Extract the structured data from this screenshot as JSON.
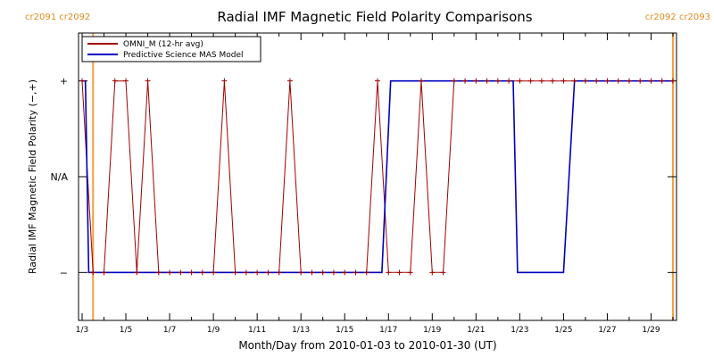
{
  "chart_data": {
    "type": "line",
    "title": "Radial IMF Magnetic Field Polarity Comparisons",
    "xlabel": "Month/Day from 2010-01-03 to 2010-01-30 (UT)",
    "ylabel": "Radial IMF Magnetic Field Polarity (−,+)",
    "x_unit": "days from 2010-01-03 00:00 UT",
    "xlim": [
      0,
      27
    ],
    "ylim": [
      -1.5,
      1.5
    ],
    "y_tick_values": [
      1,
      0,
      -1
    ],
    "y_tick_labels": [
      "+",
      "N/A",
      "−"
    ],
    "x_tick_values": [
      0,
      2,
      4,
      6,
      8,
      10,
      12,
      14,
      16,
      18,
      20,
      22,
      24,
      26
    ],
    "x_tick_labels": [
      "1/3",
      "1/5",
      "1/7",
      "1/9",
      "1/11",
      "1/13",
      "1/15",
      "1/17",
      "1/19",
      "1/21",
      "1/23",
      "1/25",
      "1/27",
      "1/29"
    ],
    "grid": false,
    "legend_position": "top-left",
    "carrington_markers": [
      {
        "x": 0.5,
        "label": "cr2091 cr2092",
        "side": "left"
      },
      {
        "x": 27.0,
        "label": "cr2092 cr2093",
        "side": "right"
      }
    ],
    "series": [
      {
        "name": "OMNI_M (12-hr avg)",
        "color": "#a00000",
        "x": [
          0.0,
          0.5,
          1.0,
          1.5,
          2.0,
          2.5,
          3.0,
          3.5,
          4.0,
          4.5,
          5.0,
          5.5,
          6.0,
          6.5,
          7.0,
          7.5,
          8.0,
          8.5,
          9.0,
          9.5,
          10.0,
          10.5,
          11.0,
          11.5,
          12.0,
          12.5,
          13.0,
          13.5,
          14.0,
          14.5,
          15.0,
          15.5,
          16.0,
          16.5,
          17.0,
          17.5,
          18.0,
          18.5,
          19.0,
          19.5,
          20.0,
          20.5,
          21.0,
          21.5,
          22.0,
          22.5,
          23.0,
          23.5,
          24.0,
          24.5,
          25.0,
          25.5,
          26.0,
          26.5,
          27.0
        ],
        "values": [
          1,
          -1,
          -1,
          1,
          1,
          -1,
          1,
          -1,
          -1,
          -1,
          -1,
          -1,
          -1,
          1,
          -1,
          -1,
          -1,
          -1,
          -1,
          1,
          -1,
          -1,
          -1,
          -1,
          -1,
          -1,
          -1,
          1,
          -1,
          -1,
          -1,
          1,
          -1,
          -1,
          1,
          1,
          1,
          1,
          1,
          1,
          1,
          1,
          1,
          1,
          1,
          1,
          1,
          1,
          1,
          1,
          1,
          1,
          1,
          1,
          1
        ]
      },
      {
        "name": "Predictive Science MAS Model",
        "color": "#0000c0",
        "x": [
          0.0,
          0.15,
          0.3,
          13.7,
          14.1,
          14.3,
          19.7,
          19.9,
          22.0,
          22.5,
          23.9,
          24.1,
          27.0
        ],
        "values": [
          1,
          1,
          -1,
          -1,
          1,
          1,
          1,
          -1,
          -1,
          1,
          1,
          1,
          1
        ]
      }
    ]
  }
}
